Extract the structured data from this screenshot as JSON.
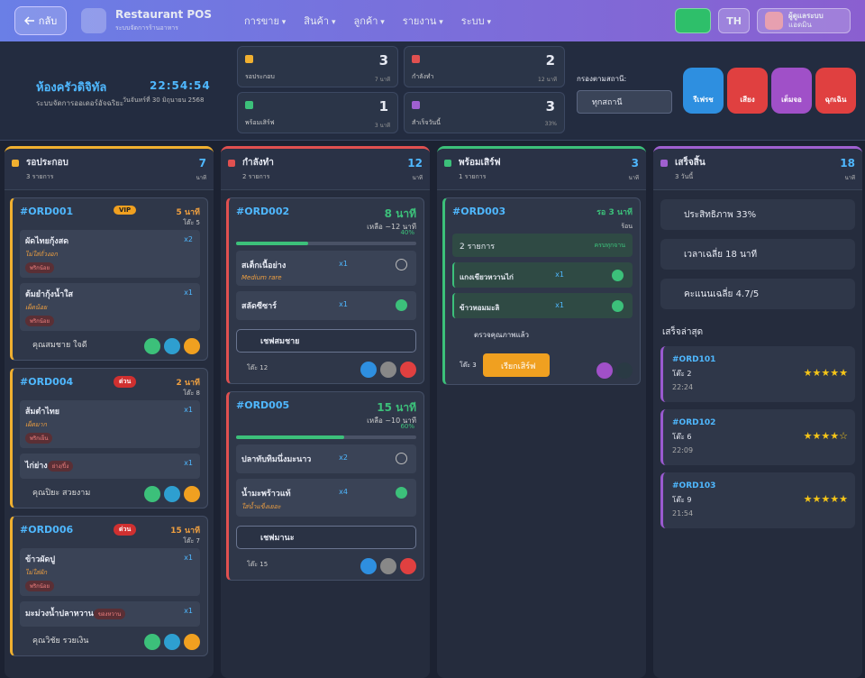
{
  "nav": {
    "back": "กลับ",
    "brand": "Restaurant POS",
    "brand_sub": "ระบบจัดการร้านอาหาร",
    "menus": [
      "การขาย",
      "สินค้า",
      "ลูกค้า",
      "รายงาน",
      "ระบบ"
    ],
    "lang": "TH",
    "user_name": "ผู้ดูแลระบบ",
    "user_role": "แอดมิน"
  },
  "header": {
    "title": "ห้องครัวดิจิทัล",
    "subtitle": "ระบบจัดการออเดอร์อัจฉริยะ",
    "clock": "22:54:54",
    "date": "วันจันทร์ที่ 30 มิถุนายน 2568"
  },
  "stats": [
    {
      "label": "รอประกอบ",
      "value": 3,
      "note": "7 นาที"
    },
    {
      "label": "กำลังทำ",
      "value": 2,
      "note": "12 นาที"
    },
    {
      "label": "พร้อมเสิร์ฟ",
      "value": 1,
      "note": "3 นาที"
    },
    {
      "label": "สำเร็จวันนี้",
      "value": 3,
      "note": "33%"
    }
  ],
  "filter": {
    "label": "กรองตามสถานี:",
    "value": "ทุกสถานี"
  },
  "actions": [
    "รีเฟรช",
    "เสียง",
    "เต็มจอ",
    "ฉุกเฉิน"
  ],
  "columns": [
    {
      "title": "รอประกอบ",
      "count": "3 รายการ",
      "right": "7",
      "unit": "นาที",
      "orders": [
        {
          "id": "#ORD001",
          "badge": "VIP",
          "time": "5 นาที",
          "table": "โต๊ะ 5",
          "customer": "คุณสมชาย ใจดี",
          "items": [
            {
              "name": "ผัดไทยกุ้งสด",
              "qty": "x2",
              "note": "ไม่ใส่ถั่วงอก",
              "tag": "พริกน้อย"
            },
            {
              "name": "ต้มยำกุ้งน้ำใส",
              "qty": "x1",
              "note": "เผ็ดน้อย",
              "tag": "พริกน้อย"
            }
          ]
        },
        {
          "id": "#ORD004",
          "badge": "ด่วน",
          "time": "2 นาที",
          "table": "โต๊ะ 8",
          "customer": "คุณปิยะ สวยงาม",
          "items": [
            {
              "name": "ส้มตำไทย",
              "qty": "x1",
              "note": "เผ็ดมาก",
              "tag": "พริกเย็น"
            },
            {
              "name": "ไก่ย่าง",
              "qty": "x1",
              "tag": "ย่าง/ปิ้ง"
            }
          ]
        },
        {
          "id": "#ORD006",
          "badge": "ด่วน",
          "time": "15 นาที",
          "table": "โต๊ะ 7",
          "customer": "คุณวิชัย รวยเงิน",
          "items": [
            {
              "name": "ข้าวผัดปู",
              "qty": "x1",
              "note": "ไม่ใส่ผัก",
              "tag": "พริกน้อย"
            },
            {
              "name": "มะม่วงน้ำปลาหวาน",
              "qty": "x1",
              "tag": "ของหวาน"
            }
          ]
        }
      ]
    },
    {
      "title": "กำลังทำ",
      "count": "2 รายการ",
      "right": "12",
      "unit": "นาที",
      "orders": [
        {
          "id": "#ORD002",
          "time": "8 นาที",
          "remaining": "เหลือ ~12 นาที",
          "progress": 40,
          "progress_label": "40%",
          "chef": "เชฟสมชาย",
          "table": "โต๊ะ 12",
          "items": [
            {
              "name": "สเต็กเนื้อย่าง",
              "qty": "x1",
              "note": "Medium rare",
              "done": false
            },
            {
              "name": "สลัดซีซาร์",
              "qty": "x1",
              "done": true
            }
          ]
        },
        {
          "id": "#ORD005",
          "time": "15 นาที",
          "remaining": "เหลือ ~10 นาที",
          "progress": 60,
          "progress_label": "60%",
          "chef": "เชฟมานะ",
          "table": "โต๊ะ 15",
          "items": [
            {
              "name": "ปลาทับทิมนึ่งมะนาว",
              "qty": "x2",
              "done": false
            },
            {
              "name": "น้ำมะพร้าวแท้",
              "qty": "x4",
              "note": "ใส่น้ำแข็งเยอะ",
              "done": true
            }
          ]
        }
      ]
    },
    {
      "title": "พร้อมเสิร์ฟ",
      "count": "1 รายการ",
      "right": "3",
      "unit": "นาที",
      "orders": [
        {
          "id": "#ORD003",
          "wait": "รอ 3 นาที",
          "heat": "ร้อน",
          "count_label": "2 รายการ",
          "all_done": "ครบทุกจาน",
          "quality": "ตรวจคุณภาพแล้ว",
          "table": "โต๊ะ 3",
          "call": "เรียกเสิร์ฟ",
          "items": [
            {
              "name": "แกงเขียวหวานไก่",
              "qty": "x1"
            },
            {
              "name": "ข้าวหอมมะลิ",
              "qty": "x1"
            }
          ]
        }
      ]
    },
    {
      "title": "เสร็จสิ้น",
      "count": "3 วันนี้",
      "right": "18",
      "unit": "นาที",
      "summary": [
        "ประสิทธิภาพ 33%",
        "เวลาเฉลี่ย 18 นาที",
        "คะแนนเฉลี่ย 4.7/5"
      ],
      "recent_title": "เสร็จล่าสุด",
      "recent": [
        {
          "id": "#ORD101",
          "table": "โต๊ะ 2",
          "time": "22:24",
          "rating": 5
        },
        {
          "id": "#ORD102",
          "table": "โต๊ะ 6",
          "time": "22:09",
          "rating": 4
        },
        {
          "id": "#ORD103",
          "table": "โต๊ะ 9",
          "time": "21:54",
          "rating": 5
        }
      ]
    }
  ]
}
